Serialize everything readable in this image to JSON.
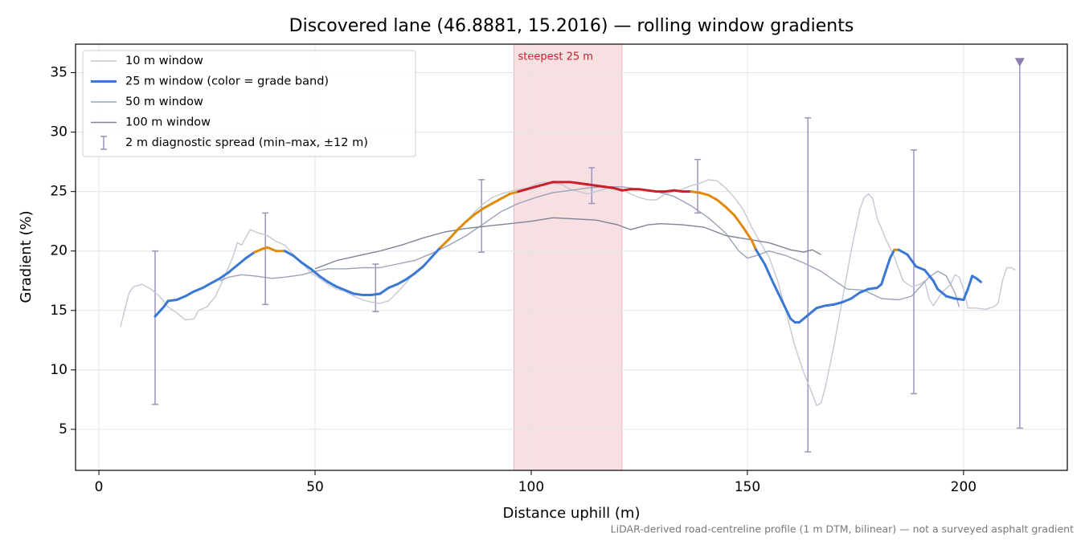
{
  "chart_data": {
    "type": "line",
    "title": "Discovered lane (46.8881, 15.2016) — rolling window gradients",
    "x_label": "Distance uphill (m)",
    "y_label": "Gradient (%)",
    "footnote": "LiDAR-derived road-centreline profile (1 m DTM, bilinear) — not a surveyed asphalt gradient",
    "xlim": [
      -5.4,
      224
    ],
    "ylim": [
      1.55,
      37.4
    ],
    "xticks": [
      0,
      50,
      100,
      150,
      200
    ],
    "yticks": [
      5,
      10,
      15,
      20,
      25,
      30,
      35
    ],
    "grid": true,
    "legend": "upper left",
    "highlight": {
      "x0": 96,
      "x1": 121,
      "label": "steepest 25 m",
      "color": "#d9505f",
      "label_color": "#c81f2a"
    },
    "series": [
      {
        "name": "10 m window",
        "color": "#c5c8d4",
        "width": 1.4,
        "x": [
          5,
          7,
          8,
          10,
          12,
          14,
          16,
          18,
          20,
          22,
          23,
          25,
          27,
          29,
          31,
          32,
          33,
          35,
          37,
          39,
          41,
          43,
          45,
          47,
          49,
          51,
          53,
          55,
          57,
          59,
          61,
          63,
          65,
          67,
          69,
          71,
          73,
          75,
          77,
          79,
          81,
          83,
          85,
          87,
          89,
          91,
          93,
          95,
          97,
          99,
          101,
          103,
          105,
          107,
          109,
          111,
          113,
          115,
          117,
          119,
          121,
          123,
          125,
          127,
          129,
          131,
          133,
          135,
          137,
          139,
          141,
          143,
          145,
          147,
          149,
          151,
          153,
          155,
          157,
          159,
          161,
          163,
          165,
          166,
          167,
          168,
          170,
          172,
          174,
          176,
          177,
          178,
          179,
          180,
          182,
          184,
          186,
          188,
          190,
          191,
          192,
          193,
          195,
          197,
          198,
          199,
          200,
          201,
          203,
          205,
          207,
          208,
          209,
          210,
          211,
          212
        ],
        "values": [
          13.6,
          16.5,
          17,
          17.2,
          16.8,
          16.2,
          15.3,
          14.8,
          14.2,
          14.3,
          15,
          15.3,
          16.2,
          17.8,
          19.5,
          20.7,
          20.5,
          21.8,
          21.5,
          21.3,
          20.8,
          20.5,
          19.7,
          19,
          18.2,
          17.7,
          17.2,
          16.8,
          16.6,
          16.2,
          15.9,
          15.7,
          15.6,
          15.8,
          16.5,
          17.3,
          18.2,
          18.8,
          19.5,
          20.2,
          21,
          21.8,
          22.5,
          23.3,
          24,
          24.5,
          24.8,
          25,
          25.2,
          25.3,
          25.6,
          25.8,
          25.7,
          25.6,
          25.2,
          25,
          24.8,
          25,
          25.2,
          25.4,
          25.2,
          24.8,
          24.5,
          24.3,
          24.3,
          24.8,
          25,
          25.2,
          25.5,
          25.7,
          26,
          25.9,
          25.3,
          24.5,
          23.5,
          22,
          20.7,
          19.5,
          17.5,
          14.8,
          12,
          9.8,
          8,
          7,
          7.2,
          8.5,
          12,
          16,
          20,
          23.5,
          24.5,
          24.8,
          24.4,
          22.8,
          21,
          19.5,
          17.5,
          17,
          17.2,
          17.5,
          16,
          15.4,
          16.5,
          17.2,
          18,
          17.8,
          16.8,
          15.2,
          15.2,
          15.1,
          15.3,
          15.6,
          17.5,
          18.6,
          18.6,
          18.4
        ]
      },
      {
        "name": "25 m window (color = grade band)",
        "color": "#3a78d4",
        "width": 3,
        "banded": true,
        "x": [
          13,
          15,
          16,
          18,
          20,
          22,
          24,
          26,
          28,
          30,
          32,
          34,
          36,
          38,
          39,
          41,
          43,
          45,
          47,
          49,
          51,
          53,
          55,
          57,
          59,
          61,
          63,
          65,
          67,
          69,
          71,
          73,
          75,
          77,
          79,
          81,
          83,
          85,
          87,
          89,
          91,
          93,
          95,
          97,
          99,
          101,
          103,
          105,
          107,
          109,
          111,
          113,
          115,
          117,
          119,
          121,
          123,
          125,
          127,
          129,
          131,
          133,
          135,
          137,
          139,
          141,
          143,
          145,
          147,
          149,
          151,
          152,
          154,
          156,
          158,
          160,
          161,
          162,
          164,
          166,
          168,
          170,
          172,
          174,
          176,
          178,
          180,
          181,
          182,
          183,
          184,
          185,
          187,
          189,
          191,
          193,
          194,
          196,
          198,
          200,
          201,
          202,
          203,
          204
        ],
        "values": [
          14.5,
          15.3,
          15.8,
          15.9,
          16.2,
          16.6,
          16.9,
          17.3,
          17.7,
          18.2,
          18.8,
          19.4,
          19.9,
          20.2,
          20.3,
          20,
          20,
          19.6,
          19,
          18.5,
          17.9,
          17.4,
          17,
          16.7,
          16.4,
          16.3,
          16.3,
          16.4,
          16.9,
          17.2,
          17.6,
          18.1,
          18.7,
          19.5,
          20.3,
          21,
          21.8,
          22.5,
          23.1,
          23.6,
          24,
          24.4,
          24.8,
          25,
          25.2,
          25.4,
          25.6,
          25.8,
          25.8,
          25.8,
          25.7,
          25.6,
          25.5,
          25.4,
          25.3,
          25.1,
          25.2,
          25.2,
          25.1,
          25,
          25,
          25.1,
          25,
          25,
          24.9,
          24.7,
          24.3,
          23.7,
          23,
          22,
          20.9,
          20.1,
          18.9,
          17.3,
          15.8,
          14.3,
          14,
          14,
          14.6,
          15.2,
          15.4,
          15.5,
          15.7,
          16,
          16.5,
          16.8,
          16.9,
          17.2,
          18.3,
          19.4,
          20.1,
          20.1,
          19.7,
          18.7,
          18.4,
          17.5,
          16.8,
          16.2,
          16,
          15.9,
          16.8,
          17.9,
          17.7,
          17.4
        ]
      },
      {
        "name": "50 m window",
        "color": "#9aa3b8",
        "width": 1.4,
        "x": [
          28,
          30,
          33,
          36,
          40,
          43,
          47,
          50,
          53,
          57,
          61,
          65,
          69,
          73,
          77,
          81,
          85,
          89,
          93,
          97,
          101,
          105,
          109,
          113,
          117,
          121,
          125,
          129,
          133,
          137,
          141,
          145,
          148,
          150,
          152,
          155,
          159,
          163,
          167,
          171,
          173,
          177,
          181,
          185,
          188,
          190,
          192,
          194,
          196,
          198,
          199
        ],
        "values": [
          17.5,
          17.8,
          18,
          17.9,
          17.7,
          17.8,
          18,
          18.3,
          18.5,
          18.5,
          18.6,
          18.6,
          18.9,
          19.2,
          19.8,
          20.5,
          21.3,
          22.3,
          23.3,
          24,
          24.5,
          24.9,
          25.1,
          25.3,
          25.4,
          25.4,
          25.2,
          25,
          24.6,
          23.8,
          22.8,
          21.5,
          20,
          19.4,
          19.6,
          20,
          19.6,
          19,
          18.3,
          17.3,
          16.8,
          16.7,
          16,
          15.9,
          16.2,
          17,
          17.8,
          18.3,
          17.9,
          16.5,
          15.3
        ]
      },
      {
        "name": "100 m window",
        "color": "#7d8595",
        "width": 1.4,
        "x": [
          50,
          55,
          60,
          65,
          70,
          75,
          80,
          85,
          90,
          95,
          100,
          105,
          110,
          115,
          120,
          123,
          127,
          130,
          135,
          140,
          145,
          150,
          155,
          160,
          163,
          165,
          167
        ],
        "values": [
          18.5,
          19.2,
          19.6,
          20,
          20.5,
          21.1,
          21.6,
          21.9,
          22.1,
          22.3,
          22.5,
          22.8,
          22.7,
          22.6,
          22.2,
          21.8,
          22.2,
          22.3,
          22.2,
          22,
          21.3,
          21,
          20.7,
          20.1,
          19.9,
          20.1,
          19.7
        ]
      }
    ],
    "grade_bands": [
      {
        "below": 20,
        "color": "#3a78d4"
      },
      {
        "below": 25,
        "color": "#e08a0b"
      },
      {
        "below": null,
        "color": "#c81f2a"
      }
    ],
    "errorbars": {
      "name": "2 m diagnostic spread (min–max, ±12 m)",
      "color": "#9b94bd",
      "x": [
        13,
        38.5,
        64,
        88.5,
        114,
        138.5,
        164,
        188.5,
        213
      ],
      "low": [
        7.1,
        15.5,
        14.9,
        19.9,
        24,
        23.2,
        3.1,
        8,
        5.1
      ],
      "high": [
        20,
        23.2,
        18.9,
        26,
        27,
        27.7,
        31.2,
        28.5,
        36
      ]
    },
    "peak_marker": {
      "x": 213,
      "y": 35.9,
      "color": "#8a7fad"
    }
  }
}
